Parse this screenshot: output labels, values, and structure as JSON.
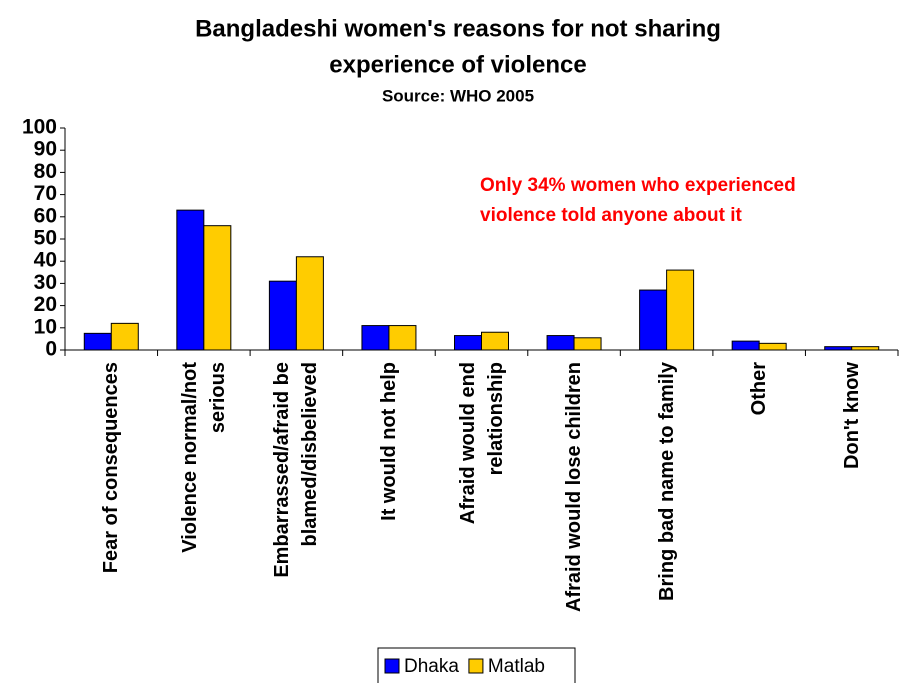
{
  "chart_data": {
    "type": "bar",
    "title": [
      "Bangladeshi women's reasons for not sharing",
      "experience of violence"
    ],
    "subtitle": "Source:  WHO 2005",
    "annotation": [
      "Only 34% women who experienced",
      "violence told anyone about it"
    ],
    "annotation_color": "#ff0000",
    "categories": [
      "Fear of consequences",
      "Violence normal/not serious",
      "Embarrassed/afraid be blamed/disbelieved",
      "It would not help",
      "Afraid would end relationship",
      "Afraid would lose children",
      "Bring bad name to family",
      "Other",
      "Don't know"
    ],
    "series": [
      {
        "name": "Dhaka",
        "color": "#0000ff",
        "values": [
          7.5,
          63,
          31,
          11,
          6.5,
          6.5,
          27,
          4,
          1.5
        ]
      },
      {
        "name": "Matlab",
        "color": "#ffcc00",
        "values": [
          12,
          56,
          42,
          11,
          8,
          5.5,
          36,
          3,
          1.5
        ]
      }
    ],
    "ylim": [
      0,
      100
    ],
    "yticks": [
      0,
      10,
      20,
      30,
      40,
      50,
      60,
      70,
      80,
      90,
      100
    ],
    "grid": false,
    "legend": "bottom"
  }
}
